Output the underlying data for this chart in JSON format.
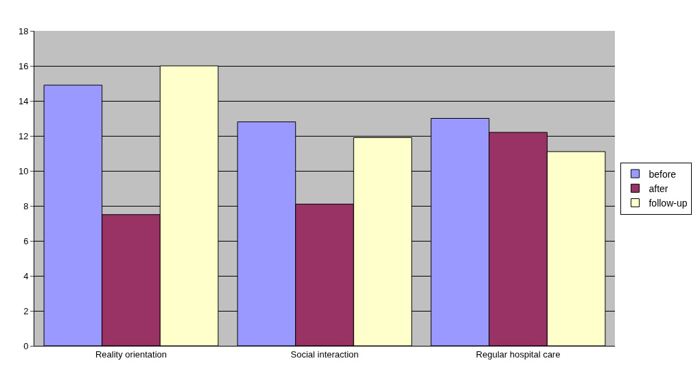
{
  "chart_data": {
    "type": "bar",
    "categories": [
      "Reality orientation",
      "Social interaction",
      "Regular hospital care"
    ],
    "series": [
      {
        "name": "before",
        "color": "#9999ff",
        "values": [
          14.9,
          12.8,
          13.0
        ]
      },
      {
        "name": "after",
        "color": "#993366",
        "values": [
          7.5,
          8.1,
          12.2
        ]
      },
      {
        "name": "follow-up",
        "color": "#ffffcc",
        "values": [
          16.0,
          11.9,
          11.1
        ]
      }
    ],
    "ylim": [
      0,
      18
    ],
    "yticks": [
      0,
      2,
      4,
      6,
      8,
      10,
      12,
      14,
      16,
      18
    ],
    "grid": "y",
    "legend": "right"
  }
}
